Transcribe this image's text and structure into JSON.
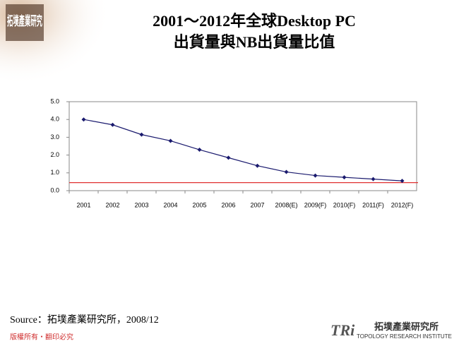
{
  "logo_top": "拓墣產業研究",
  "chart_data": {
    "type": "line",
    "title": [
      "2001～2012年全球Desktop PC",
      "出貨量與NB出貨量比值"
    ],
    "categories": [
      "2001",
      "2002",
      "2003",
      "2004",
      "2005",
      "2006",
      "2007",
      "2008(E)",
      "2009(F)",
      "2010(F)",
      "2011(F)",
      "2012(F)"
    ],
    "series": [
      {
        "color": "#1a1a6e",
        "values": [
          4.0,
          3.7,
          3.15,
          2.8,
          2.3,
          1.85,
          1.4,
          1.05,
          0.85,
          0.75,
          0.65,
          0.55
        ]
      }
    ],
    "reference_line": {
      "value": 0.45,
      "color": "#e03030"
    },
    "ylim": [
      0,
      5
    ],
    "yticks": [
      {
        "value": 0,
        "label": "0.0"
      },
      {
        "value": 1,
        "label": "1.0"
      },
      {
        "value": 2,
        "label": "2.0"
      },
      {
        "value": 3,
        "label": "3.0"
      },
      {
        "value": 4,
        "label": "4.0"
      },
      {
        "value": 5,
        "label": "5.0"
      }
    ],
    "grid": false
  },
  "source": "Source：拓墣產業研究所，2008/12",
  "footer": {
    "brand": "TRi",
    "org": "拓墣產業研究所",
    "org_en": "TOPOLOGY RESEARCH INSTITUTE",
    "copyright": "版權所有‧翻印必究"
  }
}
